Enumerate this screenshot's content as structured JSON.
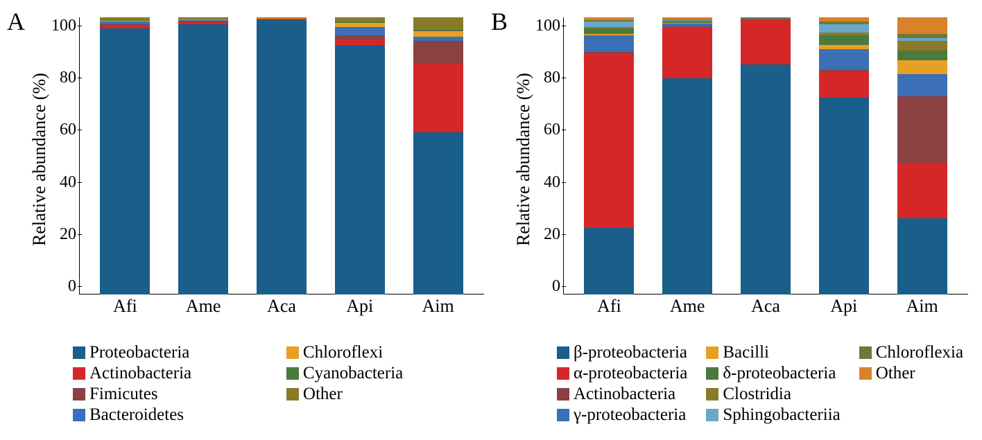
{
  "panelA": {
    "label": "A",
    "type": "stacked-bar",
    "ylabel": "Relative abundance (%)",
    "ylim": [
      0,
      100
    ],
    "ytick_step": 20,
    "yticks": [
      "0",
      "20",
      "40",
      "60",
      "80",
      "100"
    ],
    "categories": [
      "Afi",
      "Ame",
      "Aca",
      "Api",
      "Aim"
    ],
    "series": [
      {
        "name": "Proteobacteria",
        "color": "#1a5e8a"
      },
      {
        "name": "Actinobacteria",
        "color": "#d62728"
      },
      {
        "name": "Fimicutes",
        "color": "#8b4142"
      },
      {
        "name": "Bacteroidetes",
        "color": "#3b6fb6"
      },
      {
        "name": "Chloroflexi",
        "color": "#e8a024"
      },
      {
        "name": "Cyanobacteria",
        "color": "#4a7a3c"
      },
      {
        "name": "Other",
        "color": "#8a7a2a"
      }
    ],
    "data": {
      "Afi": {
        "Proteobacteria": 96.0,
        "Actinobacteria": 1.0,
        "Fimicutes": 0.5,
        "Bacteroidetes": 1.0,
        "Chloroflexi": 0.3,
        "Cyanobacteria": 0.2,
        "Other": 1.0
      },
      "Ame": {
        "Proteobacteria": 97.5,
        "Actinobacteria": 1.0,
        "Fimicutes": 0.3,
        "Bacteroidetes": 0.2,
        "Chloroflexi": 0.2,
        "Cyanobacteria": 0.3,
        "Other": 0.5
      },
      "Aca": {
        "Proteobacteria": 99.0,
        "Actinobacteria": 0.4,
        "Fimicutes": 0.1,
        "Bacteroidetes": 0.1,
        "Chloroflexi": 0.1,
        "Cyanobacteria": 0.1,
        "Other": 0.2
      },
      "Api": {
        "Proteobacteria": 90.0,
        "Actinobacteria": 2.0,
        "Fimicutes": 1.5,
        "Bacteroidetes": 3.0,
        "Chloroflexi": 1.5,
        "Cyanobacteria": 0.5,
        "Other": 1.5
      },
      "Aim": {
        "Proteobacteria": 58.5,
        "Actinobacteria": 25.0,
        "Fimicutes": 8.0,
        "Bacteroidetes": 1.5,
        "Chloroflexi": 2.0,
        "Cyanobacteria": 0.5,
        "Other": 4.5
      }
    },
    "legend_cols": 2,
    "legend_rows": 4,
    "font_family": "Times New Roman",
    "axis_color": "#000000",
    "background_color": "#ffffff"
  },
  "panelB": {
    "label": "B",
    "type": "stacked-bar",
    "ylabel": "Relative abundance (%)",
    "ylim": [
      0,
      100
    ],
    "ytick_step": 20,
    "yticks": [
      "0",
      "20",
      "40",
      "60",
      "80",
      "100"
    ],
    "categories": [
      "Afi",
      "Ame",
      "Aca",
      "Api",
      "Aim"
    ],
    "series": [
      {
        "name": "β-proteobacteria",
        "color": "#1a5e8a"
      },
      {
        "name": "α-proteobacteria",
        "color": "#d62728"
      },
      {
        "name": "Actinobacteria",
        "color": "#8b4142"
      },
      {
        "name": "γ-proteobacteria",
        "color": "#3b6fb6"
      },
      {
        "name": "Bacilli",
        "color": "#e8a024"
      },
      {
        "name": "δ-proteobacteria",
        "color": "#4a7a3c"
      },
      {
        "name": "Clostridia",
        "color": "#8a7a2a"
      },
      {
        "name": "Sphingobacteriia",
        "color": "#6ba7c9"
      },
      {
        "name": "Chloroflexia",
        "color": "#6b7a3a"
      },
      {
        "name": "Other",
        "color": "#d8822a"
      }
    ],
    "data": {
      "Afi": {
        "β-proteobacteria": 24.0,
        "α-proteobacteria": 63.0,
        "Actinobacteria": 0.5,
        "γ-proteobacteria": 6.0,
        "Bacilli": 0.5,
        "δ-proteobacteria": 2.0,
        "Clostridia": 0.5,
        "Sphingobacteriia": 2.0,
        "Chloroflexia": 0.5,
        "Other": 1.0
      },
      "Ame": {
        "β-proteobacteria": 78.0,
        "α-proteobacteria": 18.5,
        "Actinobacteria": 0.3,
        "γ-proteobacteria": 1.0,
        "Bacilli": 0.3,
        "δ-proteobacteria": 0.5,
        "Clostridia": 0.2,
        "Sphingobacteriia": 0.2,
        "Chloroflexia": 0.2,
        "Other": 0.8
      },
      "Aca": {
        "β-proteobacteria": 83.0,
        "α-proteobacteria": 16.0,
        "Actinobacteria": 0.2,
        "γ-proteobacteria": 0.2,
        "Bacilli": 0.1,
        "δ-proteobacteria": 0.1,
        "Clostridia": 0.1,
        "Sphingobacteriia": 0.1,
        "Chloroflexia": 0.1,
        "Other": 0.1
      },
      "Api": {
        "β-proteobacteria": 71.0,
        "α-proteobacteria": 9.5,
        "Actinobacteria": 0.5,
        "γ-proteobacteria": 7.5,
        "Bacilli": 1.5,
        "δ-proteobacteria": 3.5,
        "Clostridia": 1.0,
        "Sphingobacteriia": 3.0,
        "Chloroflexia": 1.0,
        "Other": 1.5
      },
      "Aim": {
        "β-proteobacteria": 27.5,
        "α-proteobacteria": 20.0,
        "Actinobacteria": 24.0,
        "γ-proteobacteria": 8.0,
        "Bacilli": 5.0,
        "δ-proteobacteria": 3.5,
        "Clostridia": 3.5,
        "Sphingobacteriia": 1.0,
        "Chloroflexia": 1.5,
        "Other": 6.0
      }
    },
    "legend_cols": 3,
    "legend_rows": 4,
    "font_family": "Times New Roman",
    "axis_color": "#000000",
    "background_color": "#ffffff"
  }
}
